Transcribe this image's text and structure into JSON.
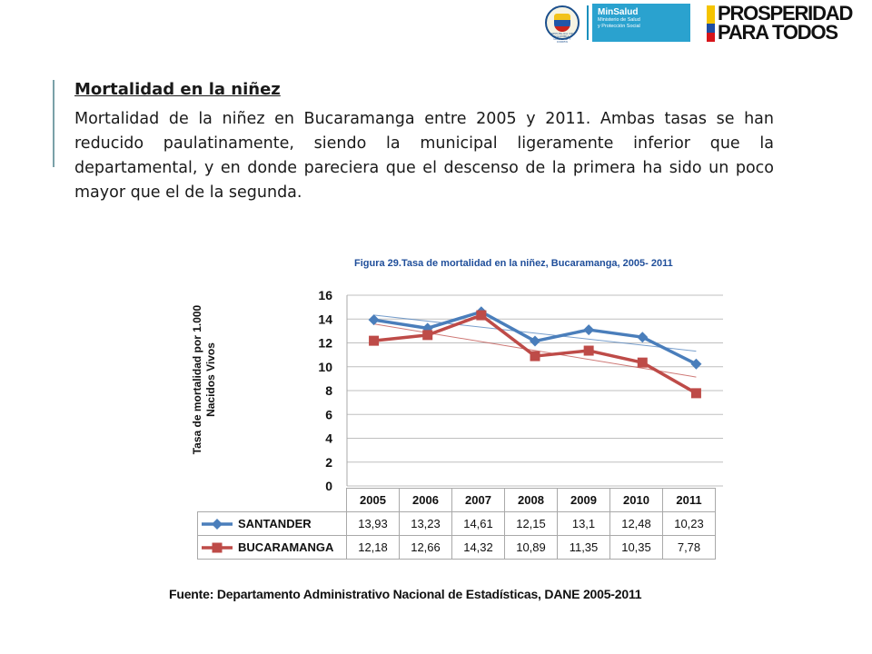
{
  "header": {
    "seal_text": "REPÚBLICA DE COLOMBIA · LIBERTAD Y ORDEN",
    "minsalud_brand": "MinSalud",
    "minsalud_sub": "Ministerio de Salud\ny Protección Social",
    "prosperidad": "PROSPERIDAD\nPARA TODOS"
  },
  "slide": {
    "heading": "Mortalidad en la niñez",
    "body": "Mortalidad de la niñez en Bucaramanga entre 2005 y 2011. Ambas tasas se han reducido paulatinamente, siendo la municipal ligeramente inferior que la departamental, y en donde pareciera que el descenso de la primera ha sido un poco mayor que el de la segunda."
  },
  "figure": {
    "title": "Figura 29.Tasa de mortalidad en la niñez, Bucaramanga, 2005- 2011",
    "ylabel_line1": "Tasa  de mortalidad por 1.000",
    "ylabel_line2": "Nacidos Vivos",
    "source": "Fuente: Departamento Administrativo Nacional de Estadísticas, DANE 2005-2011"
  },
  "chart_data": {
    "type": "line",
    "title": "Figura 29.Tasa de mortalidad en la niñez, Bucaramanga, 2005- 2011",
    "xlabel": "",
    "ylabel": "Tasa  de mortalidad por 1.000 Nacidos Vivos",
    "categories": [
      "2005",
      "2006",
      "2007",
      "2008",
      "2009",
      "2010",
      "2011"
    ],
    "ylim": [
      0,
      16
    ],
    "yticks": [
      0,
      2,
      4,
      6,
      8,
      10,
      12,
      14,
      16
    ],
    "grid": true,
    "trendlines": true,
    "legend": "table-below",
    "series": [
      {
        "name": "SANTANDER",
        "color": "#4a7ebb",
        "marker": "diamond",
        "values": [
          13.93,
          13.23,
          14.61,
          12.15,
          13.1,
          12.48,
          10.23
        ],
        "labels": [
          "13,93",
          "13,23",
          "14,61",
          "12,15",
          "13,1",
          "12,48",
          "10,23"
        ]
      },
      {
        "name": "BUCARAMANGA",
        "color": "#be4b48",
        "marker": "square",
        "values": [
          12.18,
          12.66,
          14.32,
          10.89,
          11.35,
          10.35,
          7.78
        ],
        "labels": [
          "12,18",
          "12,66",
          "14,32",
          "10,89",
          "11,35",
          "10,35",
          "7,78"
        ]
      }
    ]
  }
}
